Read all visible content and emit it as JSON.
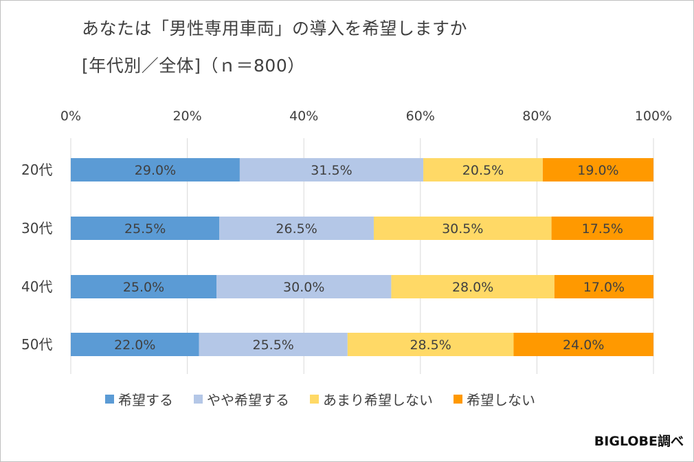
{
  "title": {
    "line1": "あなたは「男性専用車両」の導入を希望しますか",
    "line2": "[年代別／全体]（ｎ＝800）"
  },
  "source": "BIGLOBE調べ",
  "chart_data": {
    "type": "bar",
    "orientation": "horizontal",
    "stacked": true,
    "percent": true,
    "categories": [
      "20代",
      "30代",
      "40代",
      "50代"
    ],
    "x_ticks": [
      "0%",
      "20%",
      "40%",
      "60%",
      "80%",
      "100%"
    ],
    "xlim": [
      0,
      100
    ],
    "grid": true,
    "legend_position": "bottom",
    "series": [
      {
        "name": "希望する",
        "color": "#5b9bd5",
        "values": [
          29.0,
          25.5,
          25.0,
          22.0
        ],
        "labels": [
          "29.0%",
          "25.5%",
          "25.0%",
          "22.0%"
        ]
      },
      {
        "name": "やや希望する",
        "color": "#b4c7e7",
        "values": [
          31.5,
          26.5,
          30.0,
          25.5
        ],
        "labels": [
          "31.5%",
          "26.5%",
          "30.0%",
          "25.5%"
        ]
      },
      {
        "name": "あまり希望しない",
        "color": "#ffd966",
        "values": [
          20.5,
          30.5,
          28.0,
          28.5
        ],
        "labels": [
          "20.5%",
          "30.5%",
          "28.0%",
          "28.5%"
        ]
      },
      {
        "name": "希望しない",
        "color": "#ff9900",
        "values": [
          19.0,
          17.5,
          17.0,
          24.0
        ],
        "labels": [
          "19.0%",
          "17.5%",
          "17.0%",
          "24.0%"
        ]
      }
    ]
  }
}
